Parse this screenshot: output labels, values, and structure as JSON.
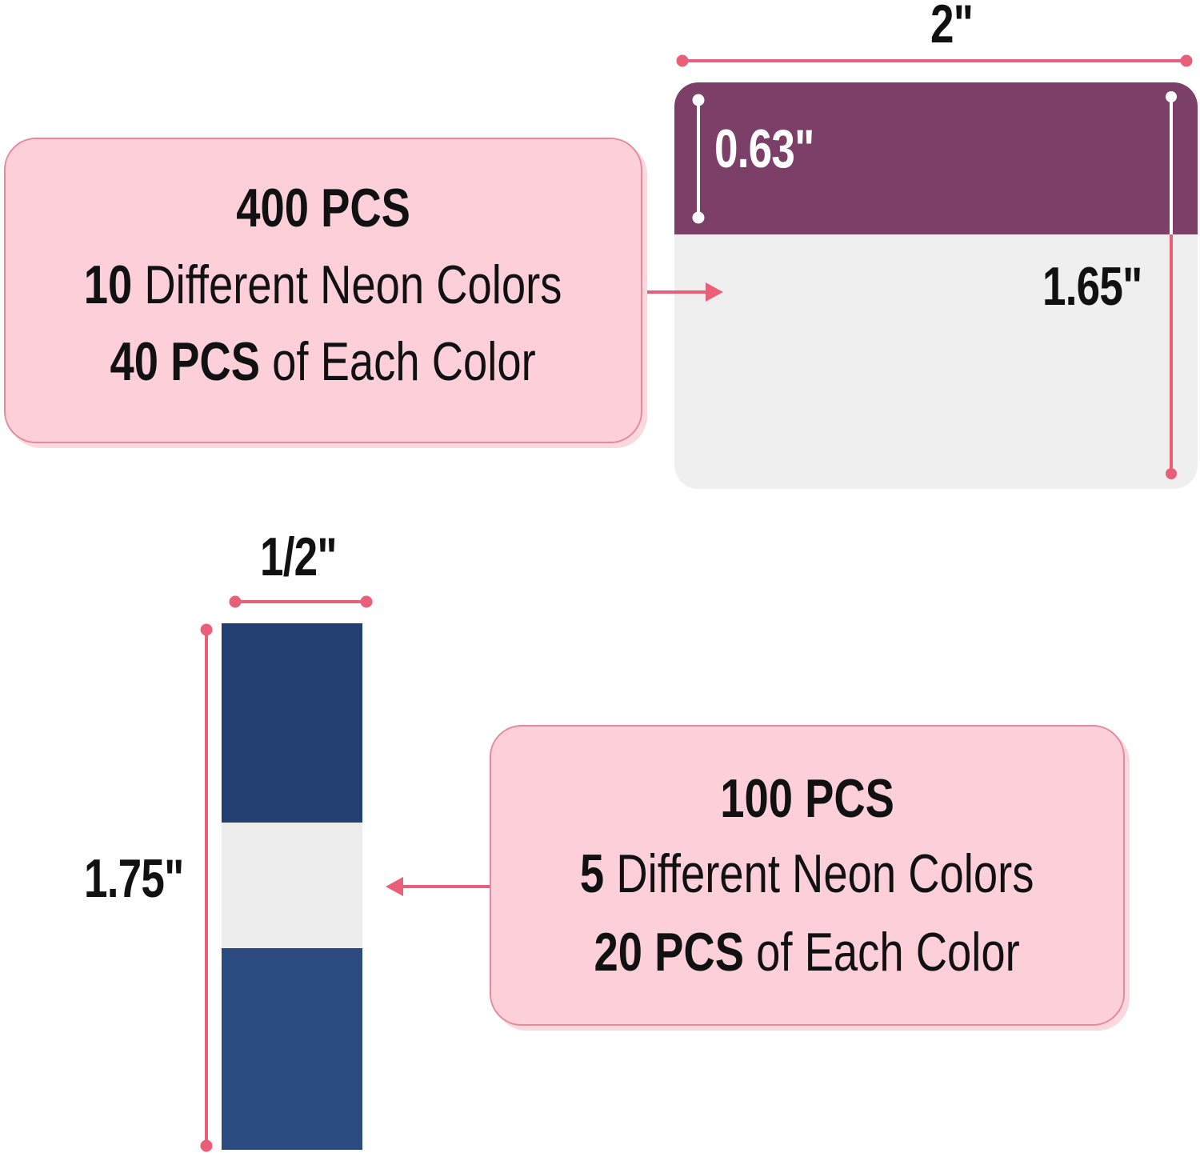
{
  "large_flag": {
    "width_label": "2\"",
    "tab_height_label": "0.63\"",
    "height_label": "1.65\"",
    "tab_color": "#7c3f67",
    "body_color": "#efefef"
  },
  "large_info": {
    "total": "400 PCS",
    "colors_count": "10",
    "colors_text": "Different Neon Colors",
    "per_color_count": "40 PCS",
    "per_color_text": "of Each Color"
  },
  "small_flag": {
    "width_label": "1/2\"",
    "height_label": "1.75\"",
    "color": "#27447a"
  },
  "small_info": {
    "total": "100 PCS",
    "colors_count": "5",
    "colors_text": "Different Neon Colors",
    "per_color_count": "20 PCS",
    "per_color_text": "of Each Color"
  },
  "colors": {
    "accent": "#e95f78",
    "box_fill": "#fdd0d9",
    "box_border": "#e48a9d"
  }
}
